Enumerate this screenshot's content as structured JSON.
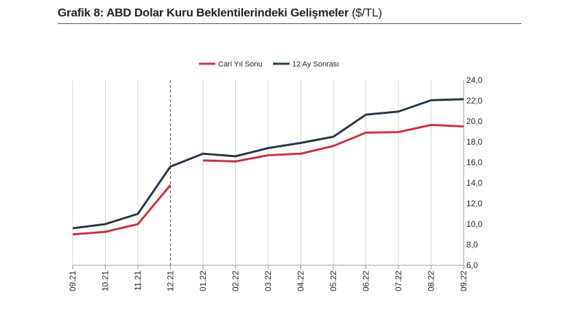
{
  "title": {
    "bold": "Grafik 8: ABD Dolar Kuru Beklentilerindeki Gelişmeler",
    "regular": " ($/TL)"
  },
  "chart_data": {
    "type": "line",
    "categories": [
      "09.21",
      "10.21",
      "11.21",
      "12.21",
      "01.22",
      "02.22",
      "03.22",
      "04.22",
      "05.22",
      "06.22",
      "07.22",
      "08.22",
      "09.22"
    ],
    "series": [
      {
        "name": "Cari Yıl Sonu",
        "color": "#c8323f",
        "values": [
          9.0,
          9.25,
          10.0,
          13.8,
          16.2,
          16.1,
          16.7,
          16.85,
          17.6,
          18.9,
          18.95,
          19.65,
          19.5
        ]
      },
      {
        "name": "12 Ay Sonrası",
        "color": "#243447",
        "values": [
          9.6,
          10.0,
          11.0,
          15.6,
          16.85,
          16.6,
          17.4,
          17.9,
          18.5,
          20.65,
          20.95,
          22.05,
          22.15
        ]
      }
    ],
    "y_ticks": [
      "6,0",
      "8,0",
      "10,0",
      "12,0",
      "14,0",
      "16,0",
      "18,0",
      "20,0",
      "22,0",
      "24,0"
    ],
    "ylim": [
      6,
      24
    ],
    "y_axis_side": "right",
    "legend_position": "top",
    "gridlines": "vertical",
    "break_after_category": "12.21",
    "marker_line_at": "12.21"
  }
}
